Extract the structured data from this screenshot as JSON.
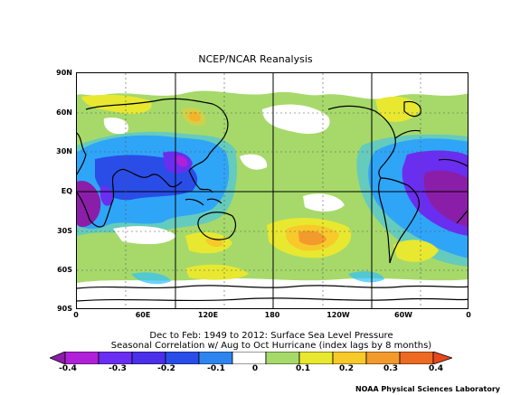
{
  "title": "NCEP/NCAR Reanalysis",
  "map": {
    "lat_labels": [
      "90N",
      "60N",
      "30N",
      "EQ",
      "30S",
      "60S",
      "90S"
    ],
    "lon_labels": [
      "0",
      "60E",
      "120E",
      "180",
      "120W",
      "60W",
      "0"
    ],
    "field": "Seasonal correlation of surface sea level pressure",
    "color_scale": [
      "#8b1ea8",
      "#b020d8",
      "#6a2ef0",
      "#2a4de8",
      "#2f85f0",
      "#2fc0ff",
      "#ffffff",
      "#a6d96a",
      "#e8e830",
      "#f7c92a",
      "#f39a2c",
      "#e8461c"
    ]
  },
  "subtitle_line1": "Dec to Feb: 1949 to 2012: Surface Sea Level Pressure",
  "subtitle_line2": "Seasonal Correlation w/ Aug to Oct Hurricane (index lags by 8 months)",
  "colorbar": {
    "labels": [
      "-0.4",
      "-0.3",
      "-0.2",
      "-0.1",
      "0",
      "0.1",
      "0.2",
      "0.3",
      "0.4"
    ]
  },
  "credit": "NOAA Physical Sciences Laboratory"
}
